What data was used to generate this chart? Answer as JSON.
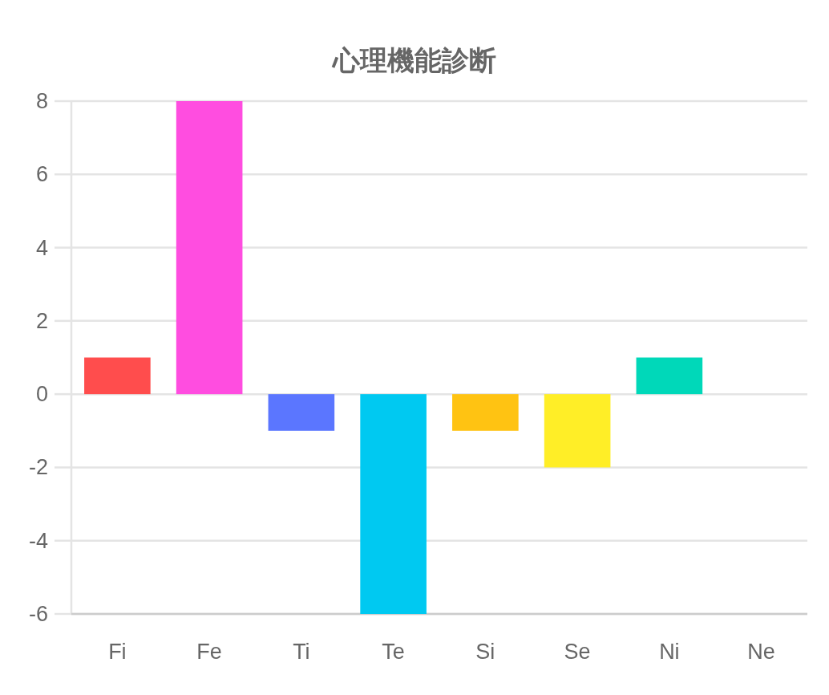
{
  "chart_data": {
    "type": "bar",
    "title": "心理機能診断",
    "categories": [
      "Fi",
      "Fe",
      "Ti",
      "Te",
      "Si",
      "Se",
      "Ni",
      "Ne"
    ],
    "values": [
      1,
      8,
      -1,
      -6,
      -1,
      -2,
      1,
      0
    ],
    "colors": [
      "#ff4d4d",
      "#ff4de0",
      "#5b76ff",
      "#00c9f1",
      "#ffc312",
      "#ffee27",
      "#00d8b9",
      null
    ],
    "ylim": [
      -6,
      8
    ],
    "yticks": [
      -6,
      -4,
      -2,
      0,
      2,
      4,
      6,
      8
    ],
    "grid": "y"
  }
}
